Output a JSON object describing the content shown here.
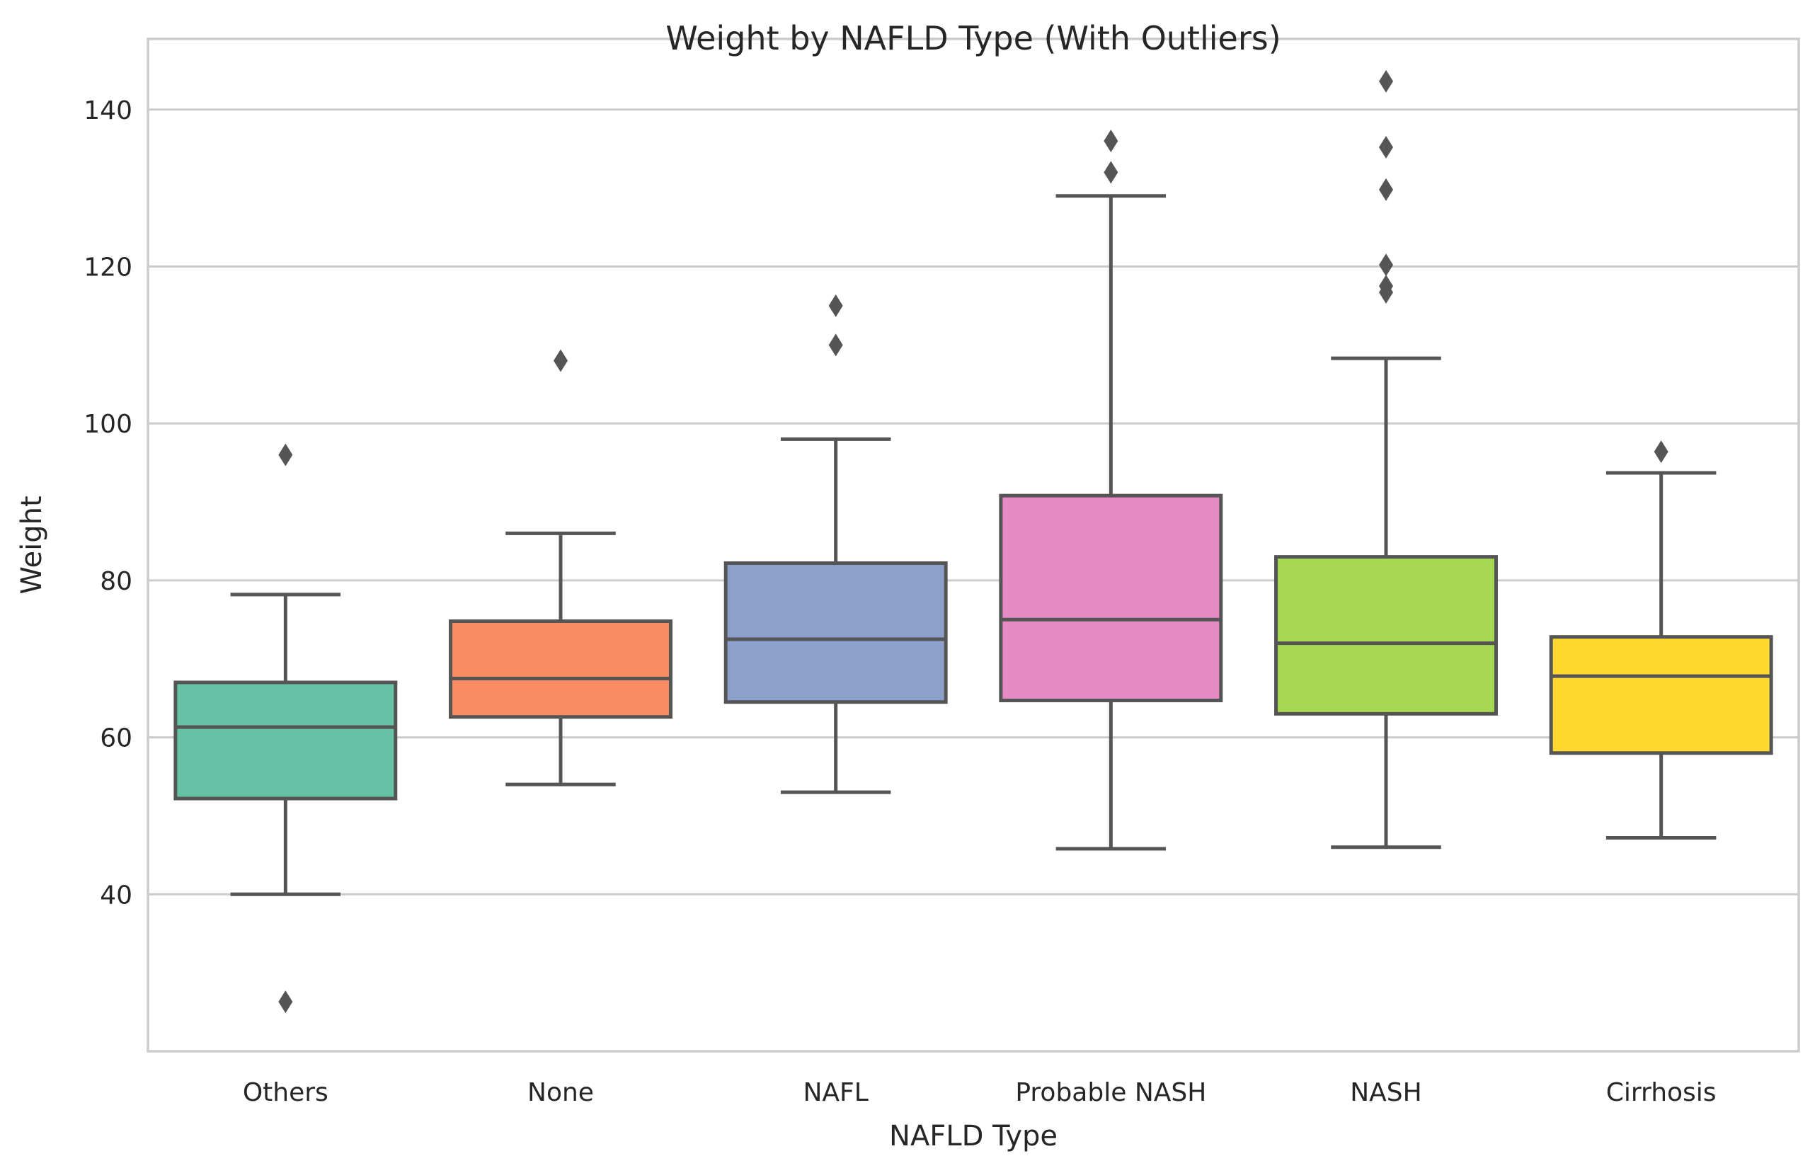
{
  "chart_data": {
    "type": "box",
    "title": "Weight by NAFLD Type (With Outliers)",
    "xlabel": "NAFLD Type",
    "ylabel": "Weight",
    "ylim": [
      20,
      149
    ],
    "yticks": [
      40,
      60,
      80,
      100,
      120,
      140
    ],
    "grid": "horizontal",
    "categories": [
      "Others",
      "None",
      "NAFL",
      "Probable NASH",
      "NASH",
      "Cirrhosis"
    ],
    "colors": [
      "#66c2a5",
      "#fc8d62",
      "#8da0cb",
      "#e78ac3",
      "#a6d854",
      "#ffd92f"
    ],
    "boxes": [
      {
        "category": "Others",
        "whislo": 40,
        "q1": 52.2,
        "med": 61.3,
        "q3": 67,
        "whishi": 78.2,
        "fliers": [
          96,
          26.3
        ]
      },
      {
        "category": "None",
        "whislo": 54,
        "q1": 62.6,
        "med": 67.5,
        "q3": 74.8,
        "whishi": 86,
        "fliers": [
          108
        ]
      },
      {
        "category": "NAFL",
        "whislo": 53,
        "q1": 64.5,
        "med": 72.5,
        "q3": 82.2,
        "whishi": 98,
        "fliers": [
          110,
          115
        ]
      },
      {
        "category": "Probable NASH",
        "whislo": 45.8,
        "q1": 64.7,
        "med": 75,
        "q3": 90.8,
        "whishi": 129,
        "fliers": [
          132,
          136
        ]
      },
      {
        "category": "NASH",
        "whislo": 46,
        "q1": 63,
        "med": 72,
        "q3": 83,
        "whishi": 108.3,
        "fliers": [
          116.7,
          117.5,
          120.2,
          129.8,
          135.2,
          143.6
        ]
      },
      {
        "category": "Cirrhosis",
        "whislo": 47.2,
        "q1": 58,
        "med": 67.8,
        "q3": 72.8,
        "whishi": 93.7,
        "fliers": [
          96.4
        ]
      }
    ]
  }
}
